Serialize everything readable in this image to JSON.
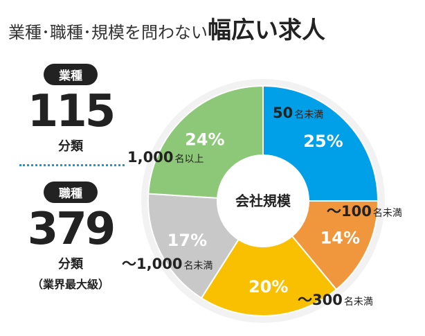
{
  "header": {
    "title_prefix": "業種･職種･規模を問わない",
    "title_emphasis": "幅広い求人"
  },
  "stats": [
    {
      "pill": "業種",
      "number": "115",
      "unit": "分類",
      "note": ""
    },
    {
      "pill": "職種",
      "number": "379",
      "unit": "分類",
      "note": "（業界最大級）"
    }
  ],
  "chart_data": {
    "type": "pie",
    "center_label": "会社規模",
    "slices": [
      {
        "pct_label": "25%",
        "value": 25,
        "label_main": "50",
        "label_sub": "名未満",
        "color": "#00a0e9"
      },
      {
        "pct_label": "14%",
        "value": 14,
        "label_main": "～100",
        "label_sub": "名未満",
        "color": "#f0963c"
      },
      {
        "pct_label": "20%",
        "value": 20,
        "label_main": "～300",
        "label_sub": "名未満",
        "color": "#f8c000"
      },
      {
        "pct_label": "17%",
        "value": 17,
        "label_main": "～1,000",
        "label_sub": "名未満",
        "color": "#c8c8c8"
      },
      {
        "pct_label": "24%",
        "value": 24,
        "label_main": "1,000",
        "label_sub": "名以上",
        "color": "#8cc878"
      }
    ]
  }
}
